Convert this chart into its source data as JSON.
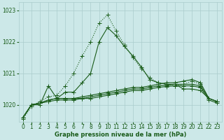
{
  "title": "Graphe pression niveau de la mer (hPa)",
  "background_color": "#cce8e8",
  "grid_color": "#aacccc",
  "line_color": "#1a5c1a",
  "x_hours": [
    0,
    1,
    2,
    3,
    4,
    5,
    6,
    7,
    8,
    9,
    10,
    11,
    12,
    13,
    14,
    15,
    16,
    17,
    18,
    19,
    20,
    21,
    22,
    23
  ],
  "series": {
    "peak": [
      1019.6,
      1020.0,
      1020.0,
      1020.6,
      1020.2,
      1020.4,
      1020.4,
      1020.7,
      1021.0,
      1022.0,
      1022.45,
      1022.2,
      1021.85,
      1021.55,
      1021.2,
      1020.8,
      1020.7,
      1020.65,
      1020.65,
      1020.5,
      1020.5,
      1020.45,
      1020.2,
      1020.1
    ],
    "dotted": [
      1019.55,
      1019.95,
      1020.1,
      1020.25,
      1020.3,
      1020.6,
      1021.0,
      1021.55,
      1022.0,
      1022.6,
      1022.85,
      1022.35,
      1021.9,
      1021.5,
      1021.15,
      1020.85,
      1020.7,
      1020.65,
      1020.6,
      1020.65,
      1020.75,
      1020.65,
      1020.2,
      1020.1
    ],
    "flat1": [
      1019.6,
      1020.0,
      1020.05,
      1020.15,
      1020.2,
      1020.2,
      1020.2,
      1020.25,
      1020.3,
      1020.35,
      1020.4,
      1020.45,
      1020.5,
      1020.55,
      1020.55,
      1020.6,
      1020.65,
      1020.7,
      1020.7,
      1020.75,
      1020.8,
      1020.7,
      1020.2,
      1020.1
    ],
    "flat2": [
      1019.6,
      1020.0,
      1020.05,
      1020.15,
      1020.2,
      1020.2,
      1020.2,
      1020.2,
      1020.25,
      1020.3,
      1020.35,
      1020.4,
      1020.45,
      1020.5,
      1020.5,
      1020.55,
      1020.6,
      1020.62,
      1020.65,
      1020.65,
      1020.65,
      1020.6,
      1020.2,
      1020.1
    ],
    "flat3": [
      1019.6,
      1020.0,
      1020.05,
      1020.1,
      1020.15,
      1020.15,
      1020.15,
      1020.2,
      1020.2,
      1020.25,
      1020.3,
      1020.35,
      1020.4,
      1020.45,
      1020.45,
      1020.5,
      1020.55,
      1020.58,
      1020.6,
      1020.6,
      1020.6,
      1020.55,
      1020.15,
      1020.05
    ]
  },
  "ylim": [
    1019.45,
    1023.25
  ],
  "yticks": [
    1020,
    1021,
    1022,
    1023
  ],
  "xlim": [
    -0.5,
    23.5
  ],
  "xticks": [
    0,
    1,
    2,
    3,
    4,
    5,
    6,
    7,
    8,
    9,
    10,
    11,
    12,
    13,
    14,
    15,
    16,
    17,
    18,
    19,
    20,
    21,
    22,
    23
  ],
  "tick_fontsize": 5.5,
  "title_fontsize": 6.0,
  "markersize": 2.0,
  "linewidth": 0.8
}
